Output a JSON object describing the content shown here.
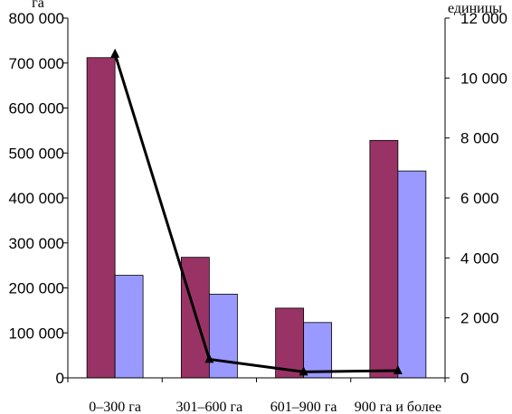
{
  "chart_data": {
    "type": "bar",
    "left_axis_unit": "га",
    "right_axis_unit": "единицы",
    "categories": [
      "0–300 га",
      "301–600 га",
      "601–900 га",
      "900 га и более"
    ],
    "series": [
      {
        "axis": "left",
        "type": "bar",
        "color": "#993366",
        "values": [
          712000,
          268000,
          155000,
          528000
        ]
      },
      {
        "axis": "left",
        "type": "bar",
        "color": "#9999ff",
        "values": [
          228000,
          186000,
          123000,
          460000
        ]
      },
      {
        "axis": "right",
        "type": "line",
        "color": "#000000",
        "marker": "triangle",
        "values": [
          10800,
          620,
          200,
          240
        ]
      }
    ],
    "left_axis": {
      "min": 0,
      "max": 800000,
      "step": 100000,
      "tick_labels": [
        "0",
        "100 000",
        "200 000",
        "300 000",
        "400 000",
        "500 000",
        "600 000",
        "700 000",
        "800 000"
      ]
    },
    "right_axis": {
      "min": 0,
      "max": 12000,
      "step": 2000,
      "tick_labels": [
        "0",
        "2 000",
        "4 000",
        "6 000",
        "8 000",
        "10 000",
        "12 000"
      ]
    },
    "grid": false,
    "legend": "none"
  }
}
